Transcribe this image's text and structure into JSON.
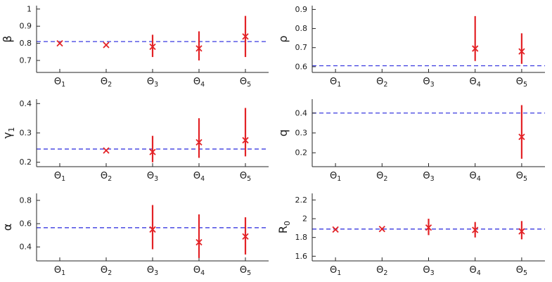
{
  "colors": {
    "marker": "#e32226",
    "errorbar": "#e32226",
    "dashed_line": "#3a3ae0",
    "axis": "#262626",
    "text": "#1a1a1a",
    "background": "#ffffff"
  },
  "chart_data": [
    {
      "id": "beta",
      "type": "scatter",
      "ylabel": "β",
      "categories": [
        "Θ_1",
        "Θ_2",
        "Θ_3",
        "Θ_4",
        "Θ_5"
      ],
      "yticks": [
        0.7,
        0.8,
        0.9,
        1.0
      ],
      "ytick_labels": [
        "0.7",
        "0.8",
        "0.9",
        "1"
      ],
      "ylim": [
        0.63,
        1.02
      ],
      "dashed_line": 0.81,
      "grid": false,
      "points": [
        {
          "cat": 1,
          "y": 0.8,
          "lo": 0.8,
          "hi": 0.8
        },
        {
          "cat": 2,
          "y": 0.79,
          "lo": 0.79,
          "hi": 0.79
        },
        {
          "cat": 3,
          "y": 0.78,
          "lo": 0.72,
          "hi": 0.85
        },
        {
          "cat": 4,
          "y": 0.77,
          "lo": 0.7,
          "hi": 0.87
        },
        {
          "cat": 5,
          "y": 0.84,
          "lo": 0.72,
          "hi": 0.96
        }
      ]
    },
    {
      "id": "rho",
      "type": "scatter",
      "ylabel": "ρ",
      "categories": [
        "Θ_1",
        "Θ_2",
        "Θ_3",
        "Θ_4",
        "Θ_5"
      ],
      "yticks": [
        0.6,
        0.7,
        0.8,
        0.9
      ],
      "ytick_labels": [
        "0.6",
        "0.7",
        "0.8",
        "0.9"
      ],
      "ylim": [
        0.57,
        0.92
      ],
      "dashed_line": 0.605,
      "grid": false,
      "points": [
        {
          "cat": 4,
          "y": 0.695,
          "lo": 0.63,
          "hi": 0.865
        },
        {
          "cat": 5,
          "y": 0.68,
          "lo": 0.615,
          "hi": 0.775
        }
      ]
    },
    {
      "id": "gamma1",
      "type": "scatter",
      "ylabel": "γ_1",
      "categories": [
        "Θ_1",
        "Θ_2",
        "Θ_3",
        "Θ_4",
        "Θ_5"
      ],
      "yticks": [
        0.2,
        0.3,
        0.4
      ],
      "ytick_labels": [
        "0.2",
        "0.3",
        "0.4"
      ],
      "ylim": [
        0.185,
        0.415
      ],
      "dashed_line": 0.245,
      "grid": false,
      "points": [
        {
          "cat": 2,
          "y": 0.24,
          "lo": 0.24,
          "hi": 0.24
        },
        {
          "cat": 3,
          "y": 0.235,
          "lo": 0.2,
          "hi": 0.29
        },
        {
          "cat": 4,
          "y": 0.268,
          "lo": 0.215,
          "hi": 0.35
        },
        {
          "cat": 5,
          "y": 0.275,
          "lo": 0.22,
          "hi": 0.385
        }
      ]
    },
    {
      "id": "q",
      "type": "scatter",
      "ylabel": "q",
      "categories": [
        "Θ_1",
        "Θ_2",
        "Θ_3",
        "Θ_4",
        "Θ_5"
      ],
      "yticks": [
        0.2,
        0.3,
        0.4
      ],
      "ytick_labels": [
        "0.2",
        "0.3",
        "0.4"
      ],
      "ylim": [
        0.13,
        0.47
      ],
      "dashed_line": 0.4,
      "grid": false,
      "points": [
        {
          "cat": 5,
          "y": 0.28,
          "lo": 0.17,
          "hi": 0.44
        }
      ]
    },
    {
      "id": "alpha",
      "type": "scatter",
      "ylabel": "α",
      "categories": [
        "Θ_1",
        "Θ_2",
        "Θ_3",
        "Θ_4",
        "Θ_5"
      ],
      "yticks": [
        0.4,
        0.6,
        0.8
      ],
      "ytick_labels": [
        "0.4",
        "0.6",
        "0.8"
      ],
      "ylim": [
        0.28,
        0.86
      ],
      "dashed_line": 0.565,
      "grid": false,
      "points": [
        {
          "cat": 3,
          "y": 0.55,
          "lo": 0.38,
          "hi": 0.76
        },
        {
          "cat": 4,
          "y": 0.44,
          "lo": 0.305,
          "hi": 0.68
        },
        {
          "cat": 5,
          "y": 0.49,
          "lo": 0.335,
          "hi": 0.655
        }
      ]
    },
    {
      "id": "R0",
      "type": "scatter",
      "ylabel": "R_0",
      "categories": [
        "Θ_1",
        "Θ_2",
        "Θ_3",
        "Θ_4",
        "Θ_5"
      ],
      "yticks": [
        1.6,
        1.8,
        2.0,
        2.2
      ],
      "ytick_labels": [
        "1.6",
        "1.8",
        "2",
        "2.2"
      ],
      "ylim": [
        1.55,
        2.27
      ],
      "dashed_line": 1.89,
      "grid": false,
      "points": [
        {
          "cat": 1,
          "y": 1.885,
          "lo": 1.875,
          "hi": 1.895
        },
        {
          "cat": 2,
          "y": 1.89,
          "lo": 1.88,
          "hi": 1.9
        },
        {
          "cat": 3,
          "y": 1.905,
          "lo": 1.825,
          "hi": 2.0
        },
        {
          "cat": 4,
          "y": 1.88,
          "lo": 1.8,
          "hi": 1.965
        },
        {
          "cat": 5,
          "y": 1.865,
          "lo": 1.78,
          "hi": 1.975
        }
      ]
    }
  ]
}
